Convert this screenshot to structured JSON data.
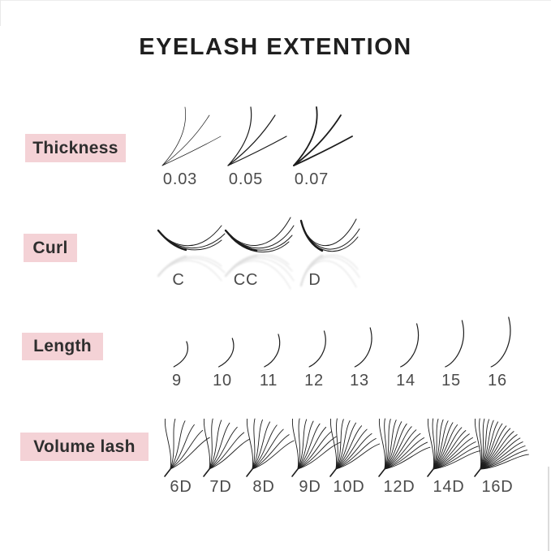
{
  "title": "EYELASH EXTENTION",
  "colors": {
    "page_bg": "#ffffff",
    "label_bg": "#f4d2d6",
    "label_text": "#2e2e2e",
    "title_text": "#1f1f1f",
    "value_text": "#4b4b4b",
    "lash_stroke": "#1c1c1c"
  },
  "rows": [
    {
      "id": "thickness",
      "label": "Thickness",
      "items": [
        {
          "value": "0.03",
          "stroke_width": 0.7
        },
        {
          "value": "0.05",
          "stroke_width": 1.2
        },
        {
          "value": "0.07",
          "stroke_width": 1.8
        }
      ]
    },
    {
      "id": "curl",
      "label": "Curl",
      "items": [
        {
          "value": "C"
        },
        {
          "value": "CC"
        },
        {
          "value": "D"
        }
      ]
    },
    {
      "id": "length",
      "label": "Length",
      "items": [
        {
          "value": "9",
          "mm": 9
        },
        {
          "value": "10",
          "mm": 10
        },
        {
          "value": "11",
          "mm": 11
        },
        {
          "value": "12",
          "mm": 12
        },
        {
          "value": "13",
          "mm": 13
        },
        {
          "value": "14",
          "mm": 14
        },
        {
          "value": "15",
          "mm": 15
        },
        {
          "value": "16",
          "mm": 16
        }
      ]
    },
    {
      "id": "volume",
      "label": "Volume lash",
      "items": [
        {
          "value": "6D",
          "strands": 6
        },
        {
          "value": "7D",
          "strands": 7
        },
        {
          "value": "8D",
          "strands": 8
        },
        {
          "value": "9D",
          "strands": 9
        },
        {
          "value": "10D",
          "strands": 10
        },
        {
          "value": "12D",
          "strands": 12
        },
        {
          "value": "14D",
          "strands": 14
        },
        {
          "value": "16D",
          "strands": 16
        }
      ]
    }
  ]
}
